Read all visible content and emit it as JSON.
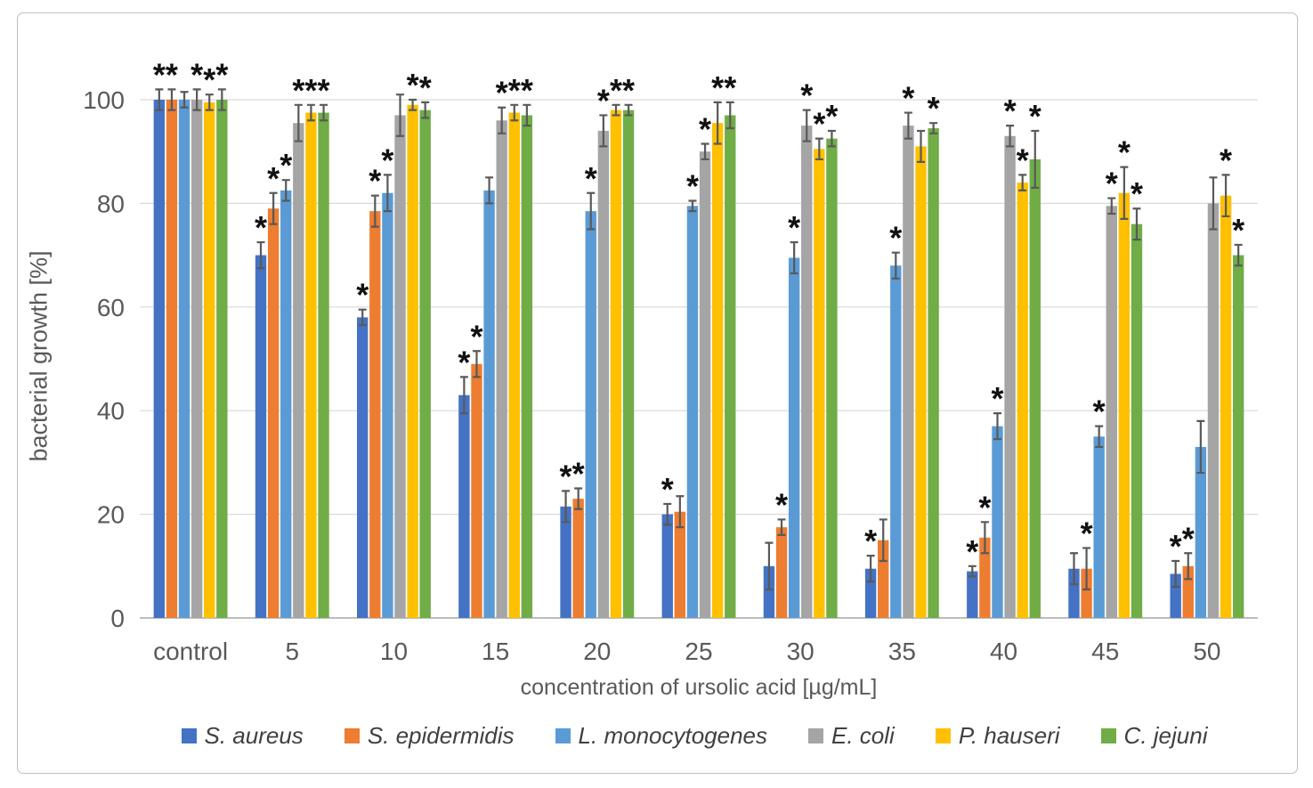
{
  "chart_data": {
    "type": "bar",
    "title": "",
    "xlabel": "concentration of ursolic acid [µg/mL]",
    "ylabel": "bacterial growth [%]",
    "ylim": [
      0,
      100
    ],
    "yticks": [
      0,
      20,
      40,
      60,
      80,
      100
    ],
    "grid": true,
    "legend_position": "bottom",
    "error_bars": true,
    "significance_marker": "*",
    "categories": [
      "control",
      "5",
      "10",
      "15",
      "20",
      "25",
      "30",
      "35",
      "40",
      "45",
      "50"
    ],
    "series": [
      {
        "name": "S. aureus",
        "color": "#4472C4",
        "values": [
          100,
          70,
          58,
          43,
          21.5,
          20,
          10,
          9.5,
          9,
          9.5,
          8.5
        ],
        "errors": [
          2,
          2.5,
          1.5,
          3.5,
          3,
          2,
          4.5,
          2.5,
          1,
          3,
          2.5
        ],
        "significant": [
          true,
          true,
          true,
          true,
          true,
          true,
          false,
          true,
          true,
          false,
          true
        ]
      },
      {
        "name": "S. epidermidis",
        "color": "#ED7D31",
        "values": [
          100,
          79,
          78.5,
          49,
          23,
          20.5,
          17.5,
          15,
          15.5,
          9.5,
          10
        ],
        "errors": [
          2,
          3,
          3,
          2.5,
          2,
          3,
          1.5,
          4,
          3,
          4,
          2.5
        ],
        "significant": [
          true,
          true,
          true,
          true,
          true,
          false,
          true,
          false,
          true,
          true,
          true
        ]
      },
      {
        "name": "L. monocytogenes",
        "color": "#5B9BD5",
        "values": [
          100,
          82.5,
          82,
          82.5,
          78.5,
          79.5,
          69.5,
          68,
          37,
          35,
          33
        ],
        "errors": [
          1.5,
          2,
          3.5,
          2.5,
          3.5,
          1,
          3,
          2.5,
          2.5,
          2,
          5
        ],
        "significant": [
          false,
          true,
          true,
          false,
          true,
          true,
          true,
          true,
          true,
          true,
          false
        ]
      },
      {
        "name": "E. coli",
        "color": "#A5A5A5",
        "values": [
          100,
          95.5,
          97,
          96,
          94,
          90,
          95,
          95,
          93,
          79.5,
          80
        ],
        "errors": [
          2,
          3.5,
          4,
          2.5,
          3,
          1.5,
          3,
          2.5,
          2,
          1.5,
          5
        ],
        "significant": [
          true,
          true,
          false,
          true,
          true,
          true,
          true,
          true,
          true,
          true,
          false
        ]
      },
      {
        "name": "P. hauseri",
        "color": "#FFC000",
        "values": [
          99.5,
          97.5,
          99,
          97.5,
          98,
          95.5,
          90.5,
          91,
          84,
          82,
          81.5
        ],
        "errors": [
          1.5,
          1.5,
          1,
          1.5,
          1,
          4,
          2,
          3,
          1.5,
          5,
          4
        ],
        "significant": [
          true,
          true,
          true,
          true,
          true,
          true,
          true,
          false,
          true,
          true,
          true
        ]
      },
      {
        "name": "C. jejuni",
        "color": "#70AD47",
        "values": [
          100,
          97.5,
          98,
          97,
          98,
          97,
          92.5,
          94.5,
          88.5,
          76,
          70
        ],
        "errors": [
          2,
          1.5,
          1.5,
          2,
          1,
          2.5,
          1.5,
          1,
          5.5,
          3,
          2
        ],
        "significant": [
          true,
          true,
          true,
          true,
          true,
          true,
          true,
          true,
          true,
          true,
          true
        ]
      }
    ]
  }
}
